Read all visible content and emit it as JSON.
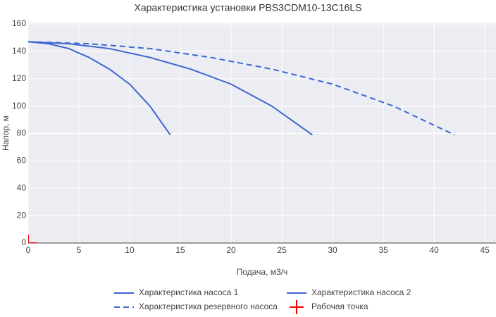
{
  "chart_data": {
    "type": "line",
    "title": "Характеристика установки PBS3CDM10-13C16LS",
    "x_label": "Подача, м3/ч",
    "y_label": "Напор, м",
    "xlim": [
      0,
      46.1
    ],
    "ylim": [
      0,
      161
    ],
    "xticks": [
      0,
      5,
      10,
      15,
      20,
      25,
      30,
      35,
      40,
      45
    ],
    "yticks": [
      0,
      20,
      40,
      60,
      80,
      100,
      120,
      140,
      160
    ],
    "grid": true,
    "series": [
      {
        "name": "Характеристика насоса 1",
        "color": "#3f66d0",
        "dash": "solid",
        "mode": "lines",
        "x": [
          0,
          2,
          4,
          6,
          8,
          10,
          12,
          14
        ],
        "values": [
          147,
          145.5,
          142,
          135.5,
          127,
          116,
          100,
          79
        ]
      },
      {
        "name": "Характеристика насоса 2",
        "color": "#3f66d0",
        "dash": "solid",
        "mode": "lines",
        "x": [
          0,
          4,
          8,
          12,
          16,
          20,
          24,
          28
        ],
        "values": [
          147,
          145.5,
          142,
          135.5,
          127,
          116,
          100,
          79
        ]
      },
      {
        "name": "Характеристика резервного насоса",
        "color": "#3f66d0",
        "dash": "dash",
        "mode": "lines",
        "x": [
          0,
          6,
          12,
          18,
          24,
          30,
          36,
          42
        ],
        "values": [
          147,
          145.5,
          142,
          135.5,
          127,
          116,
          100,
          79
        ]
      },
      {
        "name": "Рабочая точка",
        "color": "#ff0000",
        "mode": "markers",
        "symbol": "cross",
        "x": [
          0
        ],
        "values": [
          0
        ]
      }
    ]
  }
}
